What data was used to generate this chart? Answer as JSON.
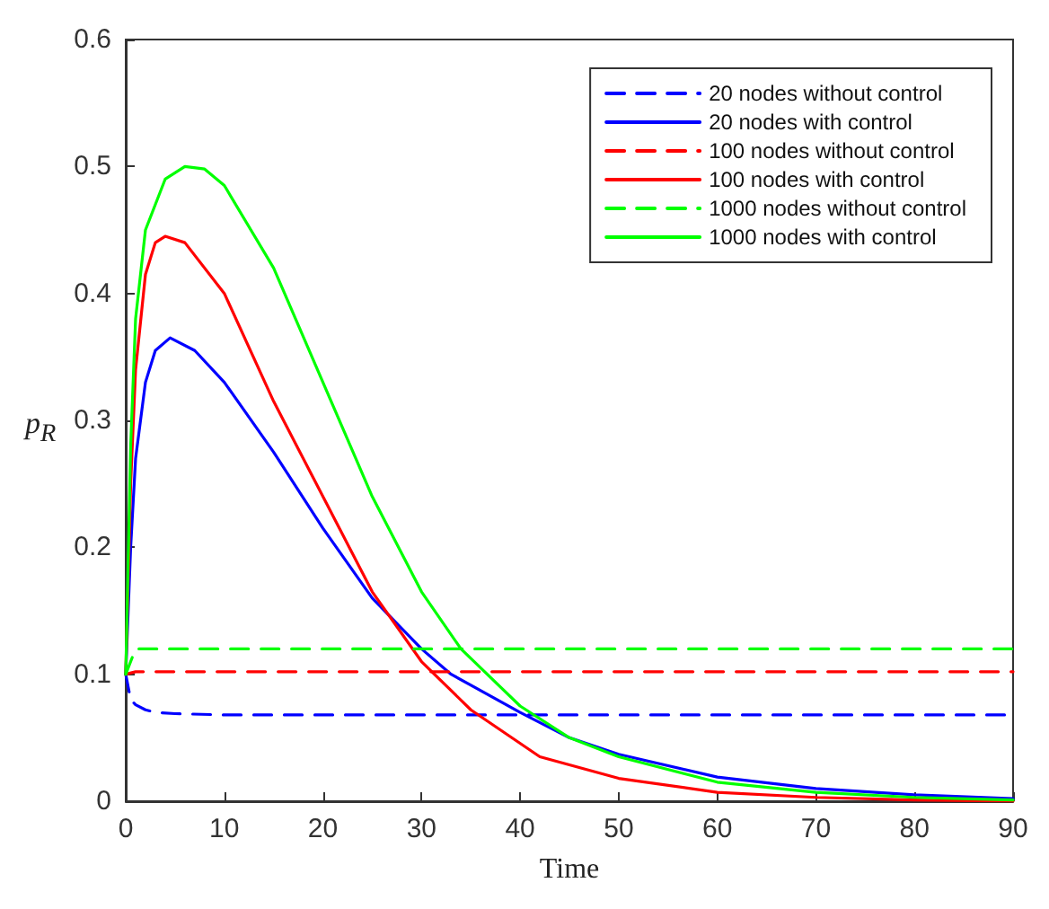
{
  "chart_data": {
    "type": "line",
    "xlabel": "Time",
    "ylabel": "p$_{R}$",
    "xlim": [
      0,
      90
    ],
    "xticks": [
      0,
      10,
      20,
      30,
      40,
      50,
      60,
      70,
      80,
      90
    ],
    "ylim": [
      0,
      0.6
    ],
    "yticks": [
      0,
      0.1,
      0.2,
      0.3,
      0.4,
      0.5,
      0.6
    ],
    "grid": false,
    "legend": "top right",
    "marker": "none",
    "series": [
      {
        "name": "20 nodes without control",
        "color": "#0000ff",
        "line_style": "dashed",
        "x": [
          0,
          0.5,
          1,
          2,
          3,
          5,
          10,
          20,
          40,
          60,
          90
        ],
        "values": [
          0.1,
          0.08,
          0.076,
          0.072,
          0.07,
          0.069,
          0.068,
          0.068,
          0.068,
          0.068,
          0.068
        ]
      },
      {
        "name": "20 nodes with control",
        "color": "#0000ff",
        "line_style": "solid",
        "x": [
          0,
          0.5,
          1,
          2,
          3,
          4.5,
          7,
          10,
          15,
          20,
          25,
          30,
          33,
          40,
          45,
          50,
          60,
          70,
          80,
          90
        ],
        "values": [
          0.1,
          0.2,
          0.27,
          0.33,
          0.355,
          0.365,
          0.355,
          0.33,
          0.275,
          0.215,
          0.16,
          0.12,
          0.1,
          0.07,
          0.05,
          0.037,
          0.019,
          0.01,
          0.005,
          0.002
        ]
      },
      {
        "name": "100 nodes without control",
        "color": "#ff0000",
        "line_style": "dashed",
        "x": [
          0,
          1,
          5,
          20,
          40,
          60,
          90
        ],
        "values": [
          0.1,
          0.102,
          0.102,
          0.102,
          0.102,
          0.102,
          0.102
        ]
      },
      {
        "name": "100 nodes with control",
        "color": "#ff0000",
        "line_style": "solid",
        "x": [
          0,
          0.5,
          1,
          2,
          3,
          4,
          6,
          10,
          15,
          20,
          25,
          30,
          35,
          42,
          50,
          60,
          70,
          80,
          90
        ],
        "values": [
          0.1,
          0.25,
          0.34,
          0.415,
          0.44,
          0.445,
          0.44,
          0.4,
          0.315,
          0.24,
          0.165,
          0.11,
          0.072,
          0.035,
          0.018,
          0.007,
          0.003,
          0.001,
          0
        ]
      },
      {
        "name": "1000 nodes without control",
        "color": "#00ff00",
        "line_style": "dashed",
        "x": [
          0,
          1,
          5,
          20,
          40,
          60,
          90
        ],
        "values": [
          0.1,
          0.12,
          0.12,
          0.12,
          0.12,
          0.12,
          0.12
        ]
      },
      {
        "name": "1000 nodes with control",
        "color": "#00ff00",
        "line_style": "solid",
        "x": [
          0,
          0.5,
          1,
          2,
          4,
          6,
          8,
          10,
          15,
          20,
          25,
          30,
          34,
          40,
          45,
          50,
          60,
          70,
          80,
          90
        ],
        "values": [
          0.1,
          0.28,
          0.38,
          0.45,
          0.49,
          0.5,
          0.498,
          0.485,
          0.42,
          0.33,
          0.24,
          0.165,
          0.12,
          0.075,
          0.05,
          0.035,
          0.015,
          0.007,
          0.003,
          0.001
        ]
      }
    ]
  }
}
